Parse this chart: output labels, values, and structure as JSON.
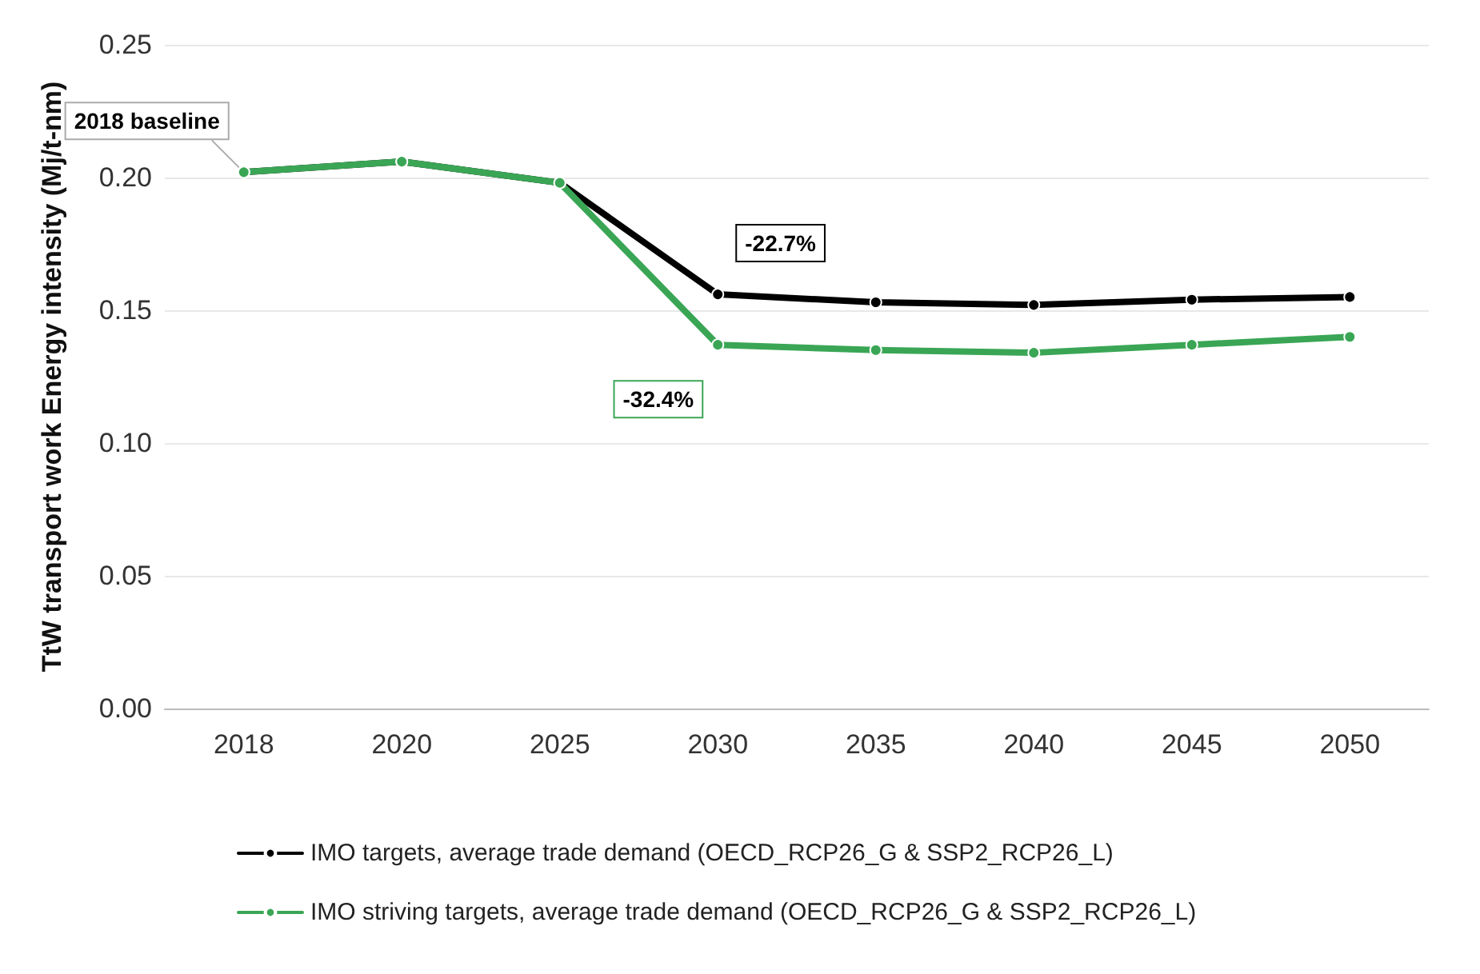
{
  "chart_data": {
    "type": "line",
    "ylabel": "TtW transport work Energy intensity (Mj/t-nm)",
    "categories": [
      "2018",
      "2020",
      "2025",
      "2030",
      "2035",
      "2040",
      "2045",
      "2050"
    ],
    "series": [
      {
        "name": "IMO targets, average trade demand (OECD_RCP26_G & SSP2_RCP26_L)",
        "color": "#000000",
        "values": [
          0.202,
          0.206,
          0.198,
          0.156,
          0.153,
          0.152,
          0.154,
          0.155
        ]
      },
      {
        "name": "IMO striving targets, average trade demand (OECD_RCP26_G & SSP2_RCP26_L)",
        "color": "#3aa655",
        "values": [
          0.202,
          0.206,
          0.198,
          0.137,
          0.135,
          0.134,
          0.137,
          0.14
        ]
      }
    ],
    "ylim": [
      0,
      0.25
    ],
    "yticks": [
      {
        "value": 0,
        "label": "0.00"
      },
      0.05,
      {
        "value": 0.1,
        "label": "0.10"
      },
      0.15,
      {
        "value": 0.2,
        "label": "0.20"
      },
      0.25
    ],
    "grid": "y",
    "legend": "bottom",
    "marker": "circle",
    "line_style": "solid",
    "annotations": [
      {
        "text": "2018 baseline",
        "x": "2018",
        "y": 0.202
      },
      {
        "text": "-22.7%",
        "x": "2030",
        "y": 0.156
      },
      {
        "text": "-32.4%",
        "x": "2030",
        "y": 0.137
      }
    ]
  }
}
